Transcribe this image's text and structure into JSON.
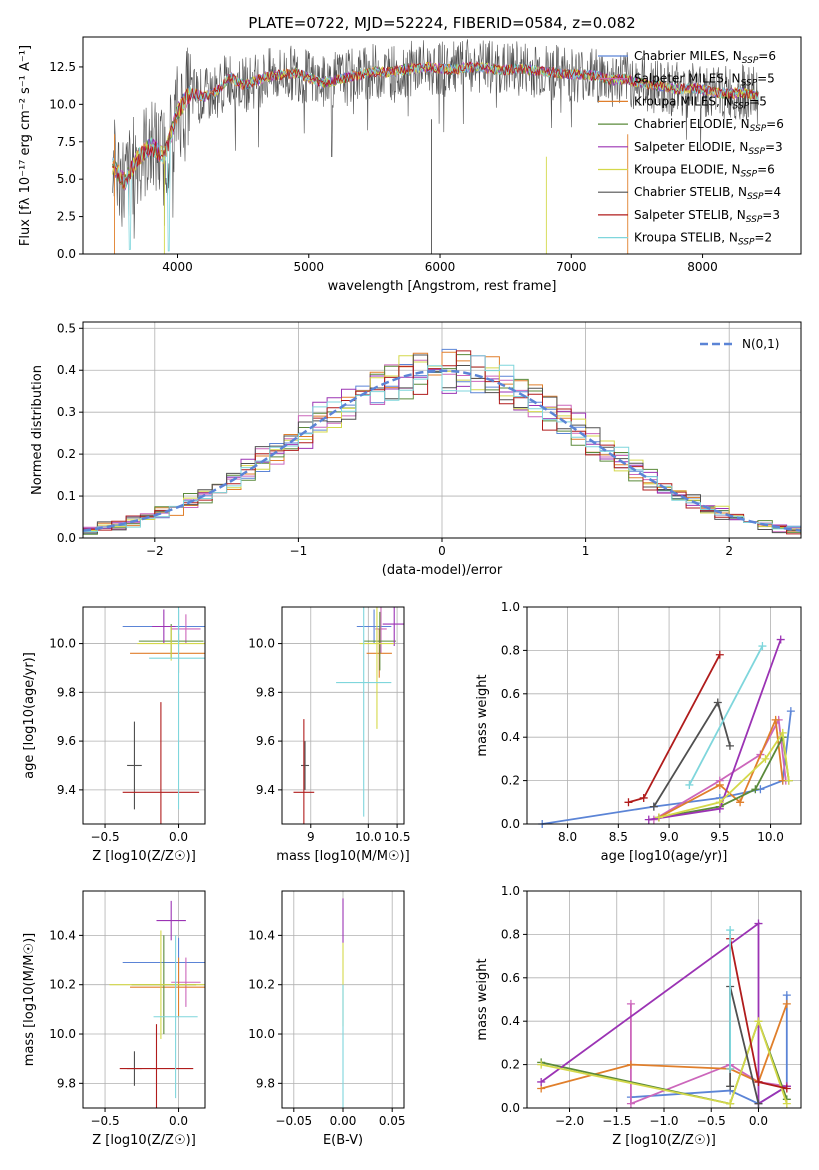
{
  "colors": [
    "#5b84d6",
    "#cc66bb",
    "#e07f2b",
    "#5a8a3a",
    "#9b33b4",
    "#d4d84a",
    "#505050",
    "#b01c1c",
    "#7fd6dc"
  ],
  "chart_data": [
    {
      "type": "line",
      "title": "PLATE=0722, MJD=52224, FIBERID=0584, z=0.082",
      "xlabel": "wavelength [Angstrom, rest frame]",
      "ylabel": "Flux [fλ 10⁻¹⁷ erg cm⁻² s⁻¹ A⁻¹]",
      "xlim": [
        3280,
        8750
      ],
      "ylim": [
        0,
        14.5
      ],
      "xticks": [
        "4000",
        "5000",
        "6000",
        "7000",
        "8000"
      ],
      "xtick_values": [
        4000,
        5000,
        6000,
        7000,
        8000
      ],
      "yticks": [
        "0.0",
        "2.5",
        "5.0",
        "7.5",
        "10.0",
        "12.5"
      ],
      "ytick_values": [
        0,
        2.5,
        5,
        7.5,
        10,
        12.5
      ],
      "legend": "top-right",
      "legend_entries": [
        "Chabrier MILES, NSSP=6",
        "Salpeter MILES, NSSP=5",
        "Kroupa MILES, NSSP=5",
        "Chabrier ELODIE, NSSP=6",
        "Salpeter ELODIE, NSSP=3",
        "Kroupa ELODIE, NSSP=6",
        "Chabrier STELIB, NSSP=4",
        "Salpeter STELIB, NSSP=3",
        "Kroupa STELIB, NSSP=2"
      ],
      "series_shape": {
        "x": [
          3500,
          3600,
          3700,
          3800,
          3900,
          4000,
          4100,
          4200,
          4300,
          4400,
          4500,
          4600,
          4700,
          4800,
          4900,
          5000,
          5100,
          5200,
          5300,
          5400,
          5500,
          5600,
          5700,
          5800,
          5900,
          6000,
          6100,
          6200,
          6300,
          6400,
          6500,
          6600,
          6700,
          6800,
          6900,
          7000,
          7100,
          7200,
          7300,
          7400,
          7500,
          7600,
          7700,
          7800,
          7900,
          8000,
          8100,
          8200,
          8300,
          8400,
          8500
        ],
        "y": [
          6.0,
          4.8,
          6.5,
          7.2,
          6.5,
          9.5,
          10.8,
          10.5,
          10.9,
          11.8,
          11.3,
          11.6,
          11.9,
          12.0,
          12.1,
          11.8,
          11.4,
          11.6,
          11.8,
          12.0,
          12.2,
          12.1,
          12.3,
          12.4,
          12.5,
          12.4,
          12.3,
          12.5,
          12.5,
          12.4,
          12.3,
          12.4,
          12.3,
          12.2,
          12.1,
          12.0,
          12.0,
          11.9,
          11.6,
          11.7,
          11.5,
          11.3,
          11.2,
          11.0,
          11.1,
          11.0,
          10.8,
          10.7,
          10.8,
          10.6,
          10.5
        ]
      }
    },
    {
      "type": "bar",
      "xlabel": "(data-model)/error",
      "ylabel": "Normed distribution",
      "xlim": [
        -2.5,
        2.5
      ],
      "ylim": [
        0,
        0.515
      ],
      "xticks": [
        "−2",
        "−1",
        "0",
        "1",
        "2"
      ],
      "xtick_values": [
        -2,
        -1,
        0,
        1,
        2
      ],
      "yticks": [
        "0.0",
        "0.1",
        "0.2",
        "0.3",
        "0.4",
        "0.5"
      ],
      "ytick_values": [
        0,
        0.1,
        0.2,
        0.3,
        0.4,
        0.5
      ],
      "legend": "top-right",
      "legend_entries": [
        "N(0,1)"
      ],
      "bin_width": 0.1
    },
    {
      "type": "scatter",
      "xlabel": "Z [log10(Z/Z☉)]",
      "ylabel": "age  [log10(age/yr)]",
      "xlim": [
        -0.65,
        0.18
      ],
      "ylim": [
        9.26,
        10.15
      ],
      "xticks": [
        "−0.5",
        "0.0"
      ],
      "xtick_values": [
        -0.5,
        0
      ],
      "yticks": [
        "9.4",
        "9.6",
        "9.8",
        "10.0"
      ],
      "ytick_values": [
        9.4,
        9.6,
        9.8,
        10.0
      ],
      "errorbars": [
        {
          "x": 0.0,
          "y": 10.07,
          "xerr": 0.38,
          "yerr": 0.07
        },
        {
          "x": 0.05,
          "y": 10.06,
          "xerr": 0.1,
          "yerr": 0.06
        },
        {
          "x": 0.0,
          "y": 9.96,
          "xerr": 0.33,
          "yerr": 0.08
        },
        {
          "x": -0.05,
          "y": 10.01,
          "xerr": 0.22,
          "yerr": 0.07
        },
        {
          "x": -0.1,
          "y": 10.07,
          "xerr": 0.08,
          "yerr": 0.07
        },
        {
          "x": -0.05,
          "y": 10.0,
          "xerr": 0.23,
          "yerr": 0.07
        },
        {
          "x": -0.3,
          "y": 9.5,
          "xerr": 0.05,
          "yerr": 0.18
        },
        {
          "x": -0.12,
          "y": 9.39,
          "xerr": 0.26,
          "yerr": 0.37
        },
        {
          "x": 0.0,
          "y": 9.94,
          "xerr": 0.2,
          "yerr": 0.62
        }
      ]
    },
    {
      "type": "scatter",
      "xlabel": "mass [log10(M/M☉)]",
      "ylabel": "",
      "xlim": [
        8.5,
        10.62
      ],
      "ylim": [
        9.26,
        10.15
      ],
      "xticks": [
        "9",
        "10",
        "10.5"
      ],
      "xticks_display": [
        "9",
        "10.0",
        "10.5"
      ],
      "xtick_values": [
        9,
        10,
        10.5
      ],
      "yticks": [
        "9.4",
        "9.6",
        "9.8",
        "10.0"
      ],
      "ytick_values": [
        9.4,
        9.6,
        9.8,
        10.0
      ],
      "errorbars": [
        {
          "x": 10.1,
          "y": 10.07,
          "xerr": 0.3,
          "yerr": 0.07
        },
        {
          "x": 10.22,
          "y": 10.06,
          "xerr": 0.1,
          "yerr": 0.1
        },
        {
          "x": 10.19,
          "y": 9.96,
          "xerr": 0.22,
          "yerr": 0.1
        },
        {
          "x": 10.2,
          "y": 10.01,
          "xerr": 0.28,
          "yerr": 0.12
        },
        {
          "x": 10.45,
          "y": 10.08,
          "xerr": 0.2,
          "yerr": 0.09
        },
        {
          "x": 10.15,
          "y": 10.0,
          "xerr": 0.3,
          "yerr": 0.35
        },
        {
          "x": 8.9,
          "y": 9.5,
          "xerr": 0.07,
          "yerr": 0.1
        },
        {
          "x": 8.88,
          "y": 9.39,
          "xerr": 0.18,
          "yerr": 0.3
        },
        {
          "x": 9.92,
          "y": 9.84,
          "xerr": 0.48,
          "yerr": 0.55
        }
      ]
    },
    {
      "type": "line",
      "xlabel": "age  [log10(age/yr)]",
      "ylabel": "mass weight",
      "xlim": [
        7.6,
        10.3
      ],
      "ylim": [
        0,
        1.0
      ],
      "xticks": [
        "8.0",
        "8.5",
        "9.0",
        "9.5",
        "10.0"
      ],
      "xtick_values": [
        8,
        8.5,
        9,
        9.5,
        10
      ],
      "yticks": [
        "0.0",
        "0.2",
        "0.4",
        "0.6",
        "0.8",
        "1.0"
      ],
      "ytick_values": [
        0,
        0.2,
        0.4,
        0.6,
        0.8,
        1.0
      ],
      "series": [
        {
          "points": [
            [
              7.75,
              0.0
            ],
            [
              8.85,
              0.08
            ],
            [
              9.5,
              0.12
            ],
            [
              9.9,
              0.16
            ],
            [
              10.12,
              0.2
            ],
            [
              10.2,
              0.52
            ]
          ]
        },
        {
          "points": [
            [
              8.85,
              0.02
            ],
            [
              9.5,
              0.2
            ],
            [
              9.9,
              0.32
            ],
            [
              10.08,
              0.48
            ],
            [
              10.15,
              0.2
            ]
          ]
        },
        {
          "points": [
            [
              8.9,
              0.03
            ],
            [
              9.5,
              0.18
            ],
            [
              9.7,
              0.1
            ],
            [
              10.05,
              0.48
            ],
            [
              10.12,
              0.2
            ]
          ]
        },
        {
          "points": [
            [
              8.9,
              0.03
            ],
            [
              9.5,
              0.08
            ],
            [
              9.85,
              0.16
            ],
            [
              10.12,
              0.4
            ],
            [
              10.18,
              0.2
            ]
          ]
        },
        {
          "points": [
            [
              8.8,
              0.02
            ],
            [
              9.5,
              0.07
            ],
            [
              10.1,
              0.85
            ]
          ]
        },
        {
          "points": [
            [
              8.9,
              0.03
            ],
            [
              9.5,
              0.1
            ],
            [
              9.95,
              0.3
            ],
            [
              10.12,
              0.42
            ],
            [
              10.18,
              0.2
            ]
          ]
        },
        {
          "points": [
            [
              8.85,
              0.08
            ],
            [
              9.48,
              0.56
            ],
            [
              9.6,
              0.36
            ]
          ]
        },
        {
          "points": [
            [
              8.6,
              0.1
            ],
            [
              8.75,
              0.12
            ],
            [
              9.5,
              0.78
            ]
          ]
        },
        {
          "points": [
            [
              9.2,
              0.18
            ],
            [
              9.92,
              0.82
            ]
          ]
        }
      ]
    },
    {
      "type": "scatter",
      "xlabel": "Z [log10(Z/Z☉)]",
      "ylabel": "mass [log10(M/M☉)]",
      "xlim": [
        -0.65,
        0.18
      ],
      "ylim": [
        9.7,
        10.58
      ],
      "xticks": [
        "−0.5",
        "0.0"
      ],
      "xtick_values": [
        -0.5,
        0
      ],
      "yticks": [
        "9.8",
        "10.0",
        "10.2",
        "10.4"
      ],
      "ytick_values": [
        9.8,
        10.0,
        10.2,
        10.4
      ],
      "errorbars": [
        {
          "x": 0.0,
          "y": 10.29,
          "xerr": 0.38,
          "yerr": 0.1
        },
        {
          "x": 0.05,
          "y": 10.21,
          "xerr": 0.1,
          "yerr": 0.1
        },
        {
          "x": 0.0,
          "y": 10.19,
          "xerr": 0.33,
          "yerr": 0.12
        },
        {
          "x": -0.1,
          "y": 10.2,
          "xerr": 0.22,
          "yerr": 0.2
        },
        {
          "x": -0.05,
          "y": 10.46,
          "xerr": 0.1,
          "yerr": 0.08
        },
        {
          "x": -0.12,
          "y": 10.2,
          "xerr": 0.35,
          "yerr": 0.22
        },
        {
          "x": -0.3,
          "y": 9.86,
          "xerr": 0.05,
          "yerr": 0.07
        },
        {
          "x": -0.15,
          "y": 9.86,
          "xerr": 0.25,
          "yerr": 0.18
        },
        {
          "x": -0.02,
          "y": 10.07,
          "xerr": 0.15,
          "yerr": 0.33
        }
      ]
    },
    {
      "type": "scatter",
      "xlabel": "E(B-V)",
      "ylabel": "",
      "xlim": [
        -0.062,
        0.062
      ],
      "ylim": [
        9.7,
        10.58
      ],
      "xticks": [
        "−0.05",
        "0.00",
        "0.05"
      ],
      "xtick_values": [
        -0.05,
        0,
        0.05
      ],
      "yticks": [
        "9.8",
        "10.0",
        "10.2",
        "10.4"
      ],
      "ytick_values": [
        9.8,
        10.0,
        10.2,
        10.4
      ],
      "errorbars": [
        {
          "x": 0.0,
          "y": 10.46,
          "xerr": 0.0,
          "yerr": 0.09
        },
        {
          "x": 0.0,
          "y": 10.2,
          "xerr": 0.0,
          "yerr": 0.17
        },
        {
          "x": 0.0,
          "y": 9.95,
          "xerr": 0.0,
          "yerr": 0.25
        }
      ]
    },
    {
      "type": "line",
      "xlabel": "Z [log10(Z/Z☉)]",
      "ylabel": "mass weight",
      "xlim": [
        -2.45,
        0.45
      ],
      "ylim": [
        0,
        1.0
      ],
      "xticks": [
        "−2.0",
        "−1.5",
        "−1.0",
        "−0.5",
        "0.0"
      ],
      "xtick_values": [
        -2,
        -1.5,
        -1,
        -0.5,
        0
      ],
      "yticks": [
        "0.0",
        "0.2",
        "0.4",
        "0.6",
        "0.8",
        "1.0"
      ],
      "ytick_values": [
        0,
        0.2,
        0.4,
        0.6,
        0.8,
        1.0
      ],
      "series": [
        {
          "points": [
            [
              -1.35,
              0.05
            ],
            [
              -0.3,
              0.08
            ],
            [
              0.0,
              0.02
            ],
            [
              0.3,
              0.1
            ],
            [
              0.3,
              0.52
            ]
          ]
        },
        {
          "points": [
            [
              -1.35,
              0.48
            ],
            [
              -1.35,
              0.02
            ],
            [
              -0.3,
              0.2
            ],
            [
              0.0,
              0.12
            ],
            [
              0.3,
              0.1
            ]
          ]
        },
        {
          "points": [
            [
              -2.3,
              0.09
            ],
            [
              -1.35,
              0.2
            ],
            [
              -0.3,
              0.18
            ],
            [
              0.0,
              0.12
            ],
            [
              0.3,
              0.48
            ]
          ]
        },
        {
          "points": [
            [
              -2.3,
              0.21
            ],
            [
              -0.3,
              0.02
            ],
            [
              0.0,
              0.4
            ],
            [
              0.3,
              0.04
            ]
          ]
        },
        {
          "points": [
            [
              -2.3,
              0.12
            ],
            [
              0.0,
              0.85
            ],
            [
              0.0,
              0.02
            ],
            [
              0.3,
              0.1
            ]
          ]
        },
        {
          "points": [
            [
              -2.3,
              0.2
            ],
            [
              -0.3,
              0.02
            ],
            [
              0.0,
              0.4
            ],
            [
              0.3,
              0.02
            ]
          ]
        },
        {
          "points": [
            [
              -0.3,
              0.1
            ],
            [
              -0.3,
              0.56
            ],
            [
              0.0,
              0.02
            ]
          ]
        },
        {
          "points": [
            [
              -0.3,
              0.78
            ],
            [
              0.0,
              0.12
            ],
            [
              0.3,
              0.09
            ]
          ]
        },
        {
          "points": [
            [
              -0.3,
              0.82
            ],
            [
              -0.3,
              0.18
            ]
          ]
        }
      ]
    }
  ]
}
